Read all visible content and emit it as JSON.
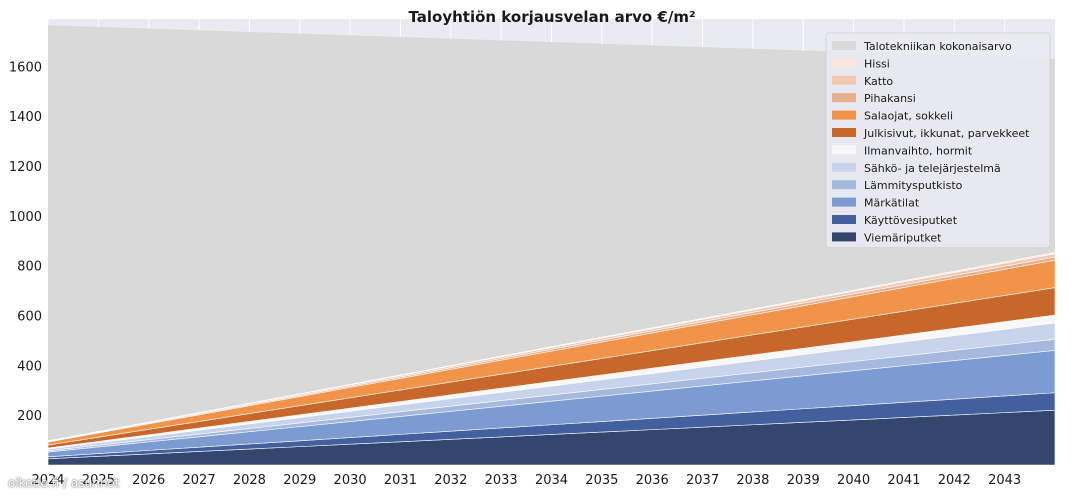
{
  "chart_data": {
    "type": "area",
    "stacked": true,
    "title": "Taloyhtiön korjausvelan arvo €/m²",
    "xlabel": "",
    "ylabel": "",
    "x": [
      2024,
      2025,
      2026,
      2027,
      2028,
      2029,
      2030,
      2031,
      2032,
      2033,
      2034,
      2035,
      2036,
      2037,
      2038,
      2039,
      2040,
      2041,
      2042,
      2043,
      2044
    ],
    "xticks": [
      "2024",
      "2025",
      "2026",
      "2027",
      "2028",
      "2029",
      "2030",
      "2031",
      "2032",
      "2033",
      "2034",
      "2035",
      "2036",
      "2037",
      "2038",
      "2039",
      "2040",
      "2041",
      "2042",
      "2043"
    ],
    "xlim": [
      2024,
      2044
    ],
    "ylim": [
      0,
      1790
    ],
    "yticks": [
      200,
      400,
      600,
      800,
      1000,
      1200,
      1400,
      1600
    ],
    "grid": true,
    "legend_position": "top-right",
    "total_label": "Talotekniikan kokonaisarvo",
    "total_color": "#d9d9d9",
    "total_start": 1765,
    "total_end": 1630,
    "series": [
      {
        "name": "Viemäriputket",
        "color": "#33466f",
        "start": 25,
        "end": 220
      },
      {
        "name": "Käyttövesiputket",
        "color": "#42609e",
        "start": 8,
        "end": 70
      },
      {
        "name": "Märkätilat",
        "color": "#7b9bd2",
        "start": 19,
        "end": 170
      },
      {
        "name": "Lämmitysputkisto",
        "color": "#a5b9de",
        "start": 5,
        "end": 45
      },
      {
        "name": "Sähkö- ja telejärjestelmä",
        "color": "#c8d3ec",
        "start": 7,
        "end": 65
      },
      {
        "name": "Ilmanvaihto, hormit",
        "color": "#f8f8f8",
        "start": 4,
        "end": 32
      },
      {
        "name": "Julkisivut, ikkunat, parvekkeet",
        "color": "#c7672b",
        "start": 12,
        "end": 110
      },
      {
        "name": "Salaojat, sokkeli",
        "color": "#f2934a",
        "start": 12,
        "end": 110
      },
      {
        "name": "Pihakansi",
        "color": "#e6b08e",
        "start": 2,
        "end": 13
      },
      {
        "name": "Katto",
        "color": "#f2c9b0",
        "start": 2,
        "end": 13
      },
      {
        "name": "Hissi",
        "color": "#fae6dc",
        "start": 1,
        "end": 5
      }
    ]
  },
  "watermark": "oikotie.fi / asunnot"
}
